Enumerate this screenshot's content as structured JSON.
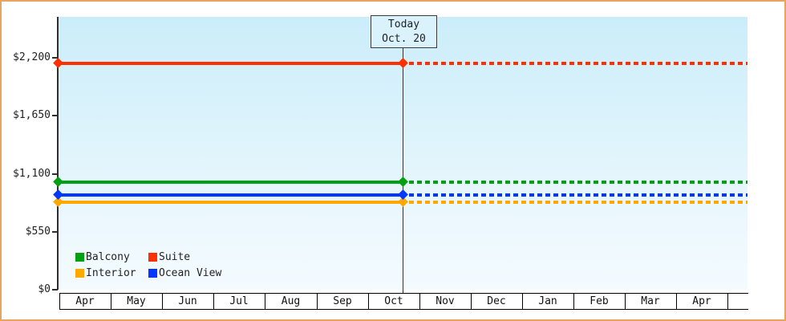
{
  "chart_data": {
    "type": "line",
    "title": "",
    "x_categories": [
      "Apr",
      "May",
      "Jun",
      "Jul",
      "Aug",
      "Sep",
      "Oct",
      "Nov",
      "Dec",
      "Jan",
      "Feb",
      "Mar",
      "Apr"
    ],
    "y_ticks": [
      "$0",
      "$550",
      "$1,100",
      "$1,650",
      "$2,200"
    ],
    "y_tick_values": [
      0,
      550,
      1100,
      1650,
      2200
    ],
    "ylim": [
      0,
      2590
    ],
    "grid": "off",
    "legend_position": "bottom-left-inside",
    "today": {
      "label_line1": "Today",
      "label_line2": "Oct. 20",
      "x_month_index": 6,
      "x_month_fraction": 0.7
    },
    "series": [
      {
        "name": "Balcony",
        "color": "#00A010",
        "value": 1020,
        "style_before_today": "solid",
        "style_after_today": "dashed"
      },
      {
        "name": "Suite",
        "color": "#FF3000",
        "value": 2145,
        "style_before_today": "solid",
        "style_after_today": "dashed"
      },
      {
        "name": "Interior",
        "color": "#FFA800",
        "value": 830,
        "style_before_today": "solid",
        "style_after_today": "dashed"
      },
      {
        "name": "Ocean View",
        "color": "#0038FF",
        "value": 900,
        "style_before_today": "solid",
        "style_after_today": "dashed"
      }
    ],
    "colors": {
      "frame_border": "#E8A55E",
      "axis": "#2F2F2F",
      "plot_bg_top": "#CBEDFA",
      "plot_bg_bottom": "#F4FBFF",
      "today_box_bg": "#D9F2FC"
    }
  }
}
